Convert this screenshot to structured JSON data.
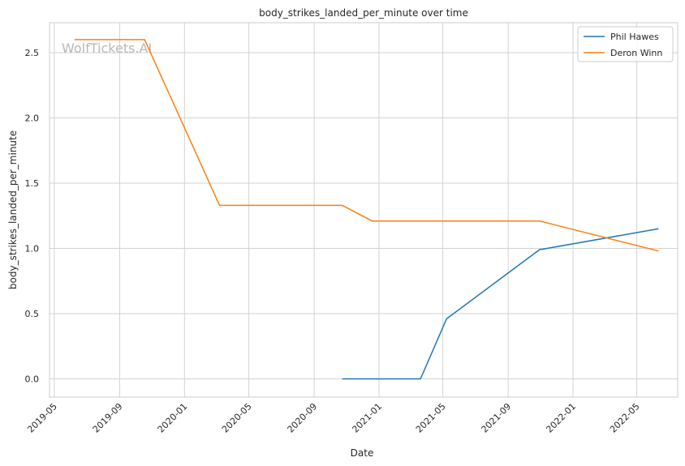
{
  "watermark": "WolfTickets.AI",
  "chart_data": {
    "type": "line",
    "title": "body_strikes_landed_per_minute over time",
    "xlabel": "Date",
    "ylabel": "body_strikes_landed_per_minute",
    "xlim": [
      "2019-04-22",
      "2022-07-17"
    ],
    "ylim": [
      -0.14,
      2.73
    ],
    "x_ticks": [
      "2019-05-01",
      "2019-09-01",
      "2020-01-01",
      "2020-05-01",
      "2020-09-01",
      "2021-01-01",
      "2021-05-01",
      "2021-09-01",
      "2022-01-01",
      "2022-05-01"
    ],
    "x_tick_labels": [
      "2019-05",
      "2019-09",
      "2020-01",
      "2020-05",
      "2020-09",
      "2021-01",
      "2021-05",
      "2021-09",
      "2022-01",
      "2022-05"
    ],
    "y_ticks": [
      0.0,
      0.5,
      1.0,
      1.5,
      2.0,
      2.5
    ],
    "y_tick_labels": [
      "0.0",
      "0.5",
      "1.0",
      "1.5",
      "2.0",
      "2.5"
    ],
    "grid": true,
    "legend_position": "top-right",
    "series": [
      {
        "name": "Phil Hawes",
        "color": "#1f77b4",
        "points": [
          {
            "x": "2020-10-24",
            "y": 0.0
          },
          {
            "x": "2021-03-20",
            "y": 0.0
          },
          {
            "x": "2021-05-08",
            "y": 0.46
          },
          {
            "x": "2021-10-30",
            "y": 0.99
          },
          {
            "x": "2022-06-11",
            "y": 1.15
          }
        ]
      },
      {
        "name": "Deron Winn",
        "color": "#ff7f0e",
        "points": [
          {
            "x": "2019-06-08",
            "y": 2.6
          },
          {
            "x": "2019-10-18",
            "y": 2.6
          },
          {
            "x": "2020-03-07",
            "y": 1.33
          },
          {
            "x": "2020-10-24",
            "y": 1.33
          },
          {
            "x": "2020-12-19",
            "y": 1.21
          },
          {
            "x": "2021-10-30",
            "y": 1.21
          },
          {
            "x": "2022-06-11",
            "y": 0.98
          }
        ]
      }
    ]
  }
}
